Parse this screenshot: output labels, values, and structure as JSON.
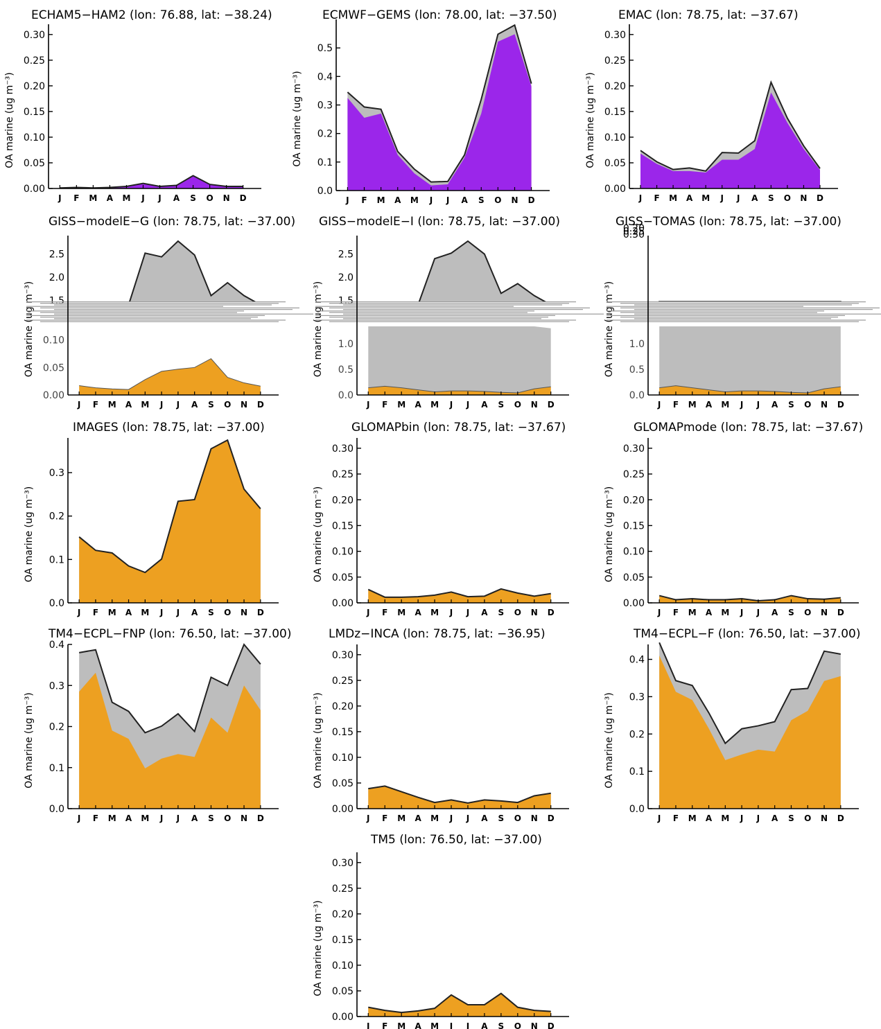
{
  "colors": {
    "grey": "#bdbdbd",
    "purple": "#9b26ea",
    "orange": "#eda021",
    "outline": "#222222"
  },
  "chart_data": [
    {
      "type": "area",
      "title": "ECHAM5−HAM2 (lon: 76.88, lat: −38.24)",
      "ylabel": "OA marine (ug m⁻³)",
      "categories": [
        "J",
        "F",
        "M",
        "A",
        "M",
        "J",
        "J",
        "A",
        "S",
        "O",
        "N",
        "D"
      ],
      "ylim": [
        0,
        0.32
      ],
      "yticks": [
        "0.00",
        "0.05",
        "0.10",
        "0.15",
        "0.20",
        "0.25",
        "0.30"
      ],
      "ytick_values": [
        0,
        0.05,
        0.1,
        0.15,
        0.2,
        0.25,
        0.3
      ],
      "fill_color": "purple",
      "series": [
        {
          "values": [
            0.001,
            0.002,
            0.001,
            0.002,
            0.004,
            0.01,
            0.004,
            0.006,
            0.025,
            0.008,
            0.004,
            0.004
          ]
        },
        {
          "values": [
            0.001,
            0.002,
            0.001,
            0.002,
            0.004,
            0.01,
            0.004,
            0.006,
            0.025,
            0.008,
            0.004,
            0.004
          ]
        }
      ]
    },
    {
      "type": "area",
      "title": "ECMWF−GEMS (lon: 78.00, lat: −37.50)",
      "ylabel": "OA marine (ug m⁻³)",
      "categories": [
        "J",
        "F",
        "M",
        "A",
        "M",
        "J",
        "J",
        "A",
        "S",
        "O",
        "N",
        "D"
      ],
      "ylim": [
        0,
        0.6
      ],
      "yticks": [
        "0.0",
        "0.1",
        "0.2",
        "0.3",
        "0.4",
        "0.5"
      ],
      "ytick_values": [
        0,
        0.1,
        0.2,
        0.3,
        0.4,
        0.5
      ],
      "fill_color": "purple",
      "series": [
        {
          "values": [
            0.345,
            0.293,
            0.285,
            0.137,
            0.075,
            0.03,
            0.032,
            0.125,
            0.32,
            0.548,
            0.58,
            0.375
          ]
        },
        {
          "values": [
            0.325,
            0.255,
            0.27,
            0.125,
            0.06,
            0.018,
            0.022,
            0.115,
            0.27,
            0.522,
            0.548,
            0.365
          ]
        }
      ]
    },
    {
      "type": "area",
      "title": "EMAC (lon: 78.75, lat: −37.67)",
      "ylabel": "OA marine (ug m⁻³)",
      "categories": [
        "J",
        "F",
        "M",
        "A",
        "M",
        "J",
        "J",
        "A",
        "S",
        "O",
        "N",
        "D"
      ],
      "ylim": [
        0,
        0.32
      ],
      "yticks": [
        "0.00",
        "0.05",
        "0.10",
        "0.15",
        "0.20",
        "0.25",
        "0.30"
      ],
      "ytick_values": [
        0,
        0.05,
        0.1,
        0.15,
        0.2,
        0.25,
        0.3
      ],
      "fill_color": "purple",
      "series": [
        {
          "values": [
            0.074,
            0.052,
            0.037,
            0.04,
            0.034,
            0.07,
            0.069,
            0.093,
            0.207,
            0.137,
            0.083,
            0.039
          ]
        },
        {
          "values": [
            0.068,
            0.048,
            0.034,
            0.034,
            0.031,
            0.056,
            0.056,
            0.077,
            0.187,
            0.128,
            0.077,
            0.036
          ]
        }
      ]
    },
    {
      "type": "area",
      "title": "GISS−modelE−G (lon: 78.75, lat: −37.00)",
      "ylabel": "OA marine (ug m⁻³)",
      "categories": [
        "J",
        "F",
        "M",
        "A",
        "M",
        "J",
        "J",
        "A",
        "S",
        "O",
        "N",
        "D"
      ],
      "ylim": [
        0,
        2.9
      ],
      "yticks": [
        "0.00",
        "0.05",
        "0.10",
        "0.15",
        "0.20",
        "0.25",
        "0.30",
        "1.5",
        "2.0",
        "2.5"
      ],
      "ytick_values": [
        0,
        0.05,
        0.1,
        0.15,
        0.2,
        0.25,
        0.3,
        1.5,
        2.0,
        2.5
      ],
      "lower_ylim": [
        0,
        0.126
      ],
      "lower_yticks": [
        "0.00",
        "0.05",
        "0.10"
      ],
      "lower_ytick_values": [
        0,
        0.05,
        0.1
      ],
      "upper_ytick_labels": [
        "1.5",
        "2.0",
        "2.5"
      ],
      "upper_ytick_values": [
        1.5,
        2.0,
        2.5
      ],
      "fill_color": "orange",
      "corrupted": true,
      "series": [
        {
          "values": [
            0.55,
            0.5,
            0.45,
            0.55,
            2.52,
            2.44,
            2.78,
            2.48,
            1.6,
            1.88,
            1.6,
            1.2
          ]
        },
        {
          "values": [
            0.017,
            0.013,
            0.011,
            0.01,
            0.028,
            0.043,
            0.047,
            0.05,
            0.066,
            0.032,
            0.022,
            0.016
          ]
        }
      ]
    },
    {
      "type": "area",
      "title": "GISS−modelE−I (lon: 78.75, lat: −37.00)",
      "ylabel": "OA marine (ug m⁻³)",
      "categories": [
        "J",
        "F",
        "M",
        "A",
        "M",
        "J",
        "J",
        "A",
        "S",
        "O",
        "N",
        "D"
      ],
      "ylim": [
        0,
        2.9
      ],
      "lower_ylim": [
        0,
        1.35
      ],
      "lower_yticks": [
        "0.0",
        "0.5",
        "1.0"
      ],
      "lower_ytick_values": [
        0,
        0.5,
        1.0
      ],
      "upper_ytick_labels": [
        "1.5",
        "2.0",
        "2.5"
      ],
      "upper_ytick_values": [
        1.5,
        2.0,
        2.5
      ],
      "fill_color": "orange",
      "corrupted": true,
      "series": [
        {
          "values": [
            1.35,
            1.35,
            1.35,
            1.35,
            2.4,
            2.52,
            2.78,
            2.5,
            1.65,
            1.86,
            1.6,
            1.3
          ]
        },
        {
          "values": [
            0.14,
            0.17,
            0.14,
            0.1,
            0.06,
            0.08,
            0.08,
            0.07,
            0.05,
            0.04,
            0.12,
            0.16
          ]
        }
      ]
    },
    {
      "type": "area",
      "title": "GISS−TOMAS (lon: 78.75, lat: −37.00)",
      "ylabel": "OA marine (ug m⁻³)",
      "categories": [
        "J",
        "F",
        "M",
        "A",
        "M",
        "J",
        "J",
        "A",
        "S",
        "O",
        "N",
        "D"
      ],
      "ylim": [
        0,
        0.32
      ],
      "lower_ylim": [
        0,
        1.35
      ],
      "lower_yticks": [
        "0.0",
        "0.5",
        "1.0"
      ],
      "lower_ytick_values": [
        0,
        0.5,
        1.0
      ],
      "upper_ytick_labels": [
        "0.20",
        "0.25",
        "0.30"
      ],
      "upper_ytick_values": [
        0.2,
        0.25,
        0.3
      ],
      "fill_color": "orange",
      "corrupted": true,
      "series": [
        {
          "values": [
            1.35,
            1.35,
            1.35,
            1.35,
            1.35,
            1.35,
            1.35,
            1.35,
            1.35,
            1.35,
            1.35,
            1.35
          ]
        },
        {
          "values": [
            0.14,
            0.18,
            0.14,
            0.1,
            0.06,
            0.08,
            0.08,
            0.07,
            0.05,
            0.04,
            0.12,
            0.16
          ]
        }
      ]
    },
    {
      "type": "area",
      "title": "IMAGES (lon: 78.75, lat: −37.00)",
      "ylabel": "OA marine (ug m⁻³)",
      "categories": [
        "J",
        "F",
        "M",
        "A",
        "M",
        "J",
        "J",
        "A",
        "S",
        "O",
        "N",
        "D"
      ],
      "ylim": [
        0,
        0.38
      ],
      "yticks": [
        "0.0",
        "0.1",
        "0.2",
        "0.3"
      ],
      "ytick_values": [
        0,
        0.1,
        0.2,
        0.3
      ],
      "fill_color": "orange",
      "series": [
        {
          "values": [
            0.152,
            0.121,
            0.115,
            0.085,
            0.07,
            0.101,
            0.234,
            0.238,
            0.355,
            0.375,
            0.262,
            0.217
          ]
        },
        {
          "values": [
            0.152,
            0.121,
            0.115,
            0.085,
            0.07,
            0.101,
            0.234,
            0.238,
            0.355,
            0.375,
            0.262,
            0.217
          ]
        }
      ]
    },
    {
      "type": "area",
      "title": "GLOMAPbin (lon: 78.75, lat: −37.67)",
      "ylabel": "OA marine (ug m⁻³)",
      "categories": [
        "J",
        "F",
        "M",
        "A",
        "M",
        "J",
        "J",
        "A",
        "S",
        "O",
        "N",
        "D"
      ],
      "ylim": [
        0,
        0.32
      ],
      "yticks": [
        "0.00",
        "0.05",
        "0.10",
        "0.15",
        "0.20",
        "0.25",
        "0.30"
      ],
      "ytick_values": [
        0,
        0.05,
        0.1,
        0.15,
        0.2,
        0.25,
        0.3
      ],
      "fill_color": "orange",
      "series": [
        {
          "values": [
            0.026,
            0.011,
            0.011,
            0.012,
            0.015,
            0.021,
            0.012,
            0.013,
            0.027,
            0.019,
            0.013,
            0.018
          ]
        },
        {
          "values": [
            0.026,
            0.011,
            0.011,
            0.012,
            0.015,
            0.021,
            0.012,
            0.013,
            0.027,
            0.019,
            0.013,
            0.018
          ]
        }
      ]
    },
    {
      "type": "area",
      "title": "GLOMAPmode (lon: 78.75, lat: −37.67)",
      "ylabel": "OA marine (ug m⁻³)",
      "categories": [
        "J",
        "F",
        "M",
        "A",
        "M",
        "J",
        "J",
        "A",
        "S",
        "O",
        "N",
        "D"
      ],
      "ylim": [
        0,
        0.32
      ],
      "yticks": [
        "0.00",
        "0.05",
        "0.10",
        "0.15",
        "0.20",
        "0.25",
        "0.30"
      ],
      "ytick_values": [
        0,
        0.05,
        0.1,
        0.15,
        0.2,
        0.25,
        0.3
      ],
      "fill_color": "orange",
      "series": [
        {
          "values": [
            0.014,
            0.006,
            0.008,
            0.006,
            0.006,
            0.008,
            0.004,
            0.006,
            0.014,
            0.008,
            0.007,
            0.01
          ]
        },
        {
          "values": [
            0.014,
            0.006,
            0.008,
            0.006,
            0.006,
            0.008,
            0.004,
            0.006,
            0.014,
            0.008,
            0.007,
            0.01
          ]
        }
      ]
    },
    {
      "type": "area",
      "title": "TM4−ECPL−FNP (lon: 76.50, lat: −37.00)",
      "ylabel": "OA marine (ug m⁻³)",
      "categories": [
        "J",
        "F",
        "M",
        "A",
        "M",
        "J",
        "J",
        "A",
        "S",
        "O",
        "N",
        "D"
      ],
      "ylim": [
        0,
        0.4
      ],
      "yticks": [
        "0.0",
        "0.1",
        "0.2",
        "0.3",
        "0.4"
      ],
      "ytick_values": [
        0,
        0.1,
        0.2,
        0.3,
        0.4
      ],
      "fill_color": "orange",
      "series": [
        {
          "values": [
            0.38,
            0.387,
            0.259,
            0.237,
            0.185,
            0.201,
            0.231,
            0.188,
            0.32,
            0.3,
            0.4,
            0.352
          ]
        },
        {
          "values": [
            0.285,
            0.331,
            0.19,
            0.17,
            0.098,
            0.122,
            0.133,
            0.126,
            0.222,
            0.185,
            0.3,
            0.24
          ]
        }
      ]
    },
    {
      "type": "area",
      "title": "LMDz−INCA (lon: 78.75, lat: −36.95)",
      "ylabel": "OA marine (ug m⁻³)",
      "categories": [
        "J",
        "F",
        "M",
        "A",
        "M",
        "J",
        "J",
        "A",
        "S",
        "O",
        "N",
        "D"
      ],
      "ylim": [
        0,
        0.32
      ],
      "yticks": [
        "0.00",
        "0.05",
        "0.10",
        "0.15",
        "0.20",
        "0.25",
        "0.30"
      ],
      "ytick_values": [
        0,
        0.05,
        0.1,
        0.15,
        0.2,
        0.25,
        0.3
      ],
      "fill_color": "orange",
      "series": [
        {
          "values": [
            0.039,
            0.044,
            0.033,
            0.022,
            0.012,
            0.017,
            0.011,
            0.017,
            0.015,
            0.012,
            0.025,
            0.03
          ]
        },
        {
          "values": [
            0.039,
            0.044,
            0.033,
            0.022,
            0.012,
            0.017,
            0.011,
            0.017,
            0.015,
            0.012,
            0.025,
            0.03
          ]
        }
      ]
    },
    {
      "type": "area",
      "title": "TM4−ECPL−F (lon: 76.50, lat: −37.00)",
      "ylabel": "OA marine (ug m⁻³)",
      "categories": [
        "J",
        "F",
        "M",
        "A",
        "M",
        "J",
        "J",
        "A",
        "S",
        "O",
        "N",
        "D"
      ],
      "ylim": [
        0,
        0.44
      ],
      "yticks": [
        "0.0",
        "0.1",
        "0.2",
        "0.3",
        "0.4"
      ],
      "ytick_values": [
        0,
        0.1,
        0.2,
        0.3,
        0.4
      ],
      "fill_color": "orange",
      "series": [
        {
          "values": [
            0.445,
            0.343,
            0.33,
            0.257,
            0.175,
            0.214,
            0.222,
            0.233,
            0.319,
            0.322,
            0.422,
            0.414
          ]
        },
        {
          "values": [
            0.41,
            0.313,
            0.291,
            0.215,
            0.13,
            0.145,
            0.158,
            0.153,
            0.237,
            0.262,
            0.342,
            0.355
          ]
        }
      ]
    },
    {
      "type": "area",
      "title": "TM5 (lon: 76.50, lat: −37.00)",
      "ylabel": "OA marine (ug m⁻³)",
      "categories": [
        "J",
        "F",
        "M",
        "A",
        "M",
        "J",
        "J",
        "A",
        "S",
        "O",
        "N",
        "D"
      ],
      "ylim": [
        0,
        0.32
      ],
      "yticks": [
        "0.00",
        "0.05",
        "0.10",
        "0.15",
        "0.20",
        "0.25",
        "0.30"
      ],
      "ytick_values": [
        0,
        0.05,
        0.1,
        0.15,
        0.2,
        0.25,
        0.3
      ],
      "fill_color": "orange",
      "series": [
        {
          "values": [
            0.018,
            0.012,
            0.008,
            0.011,
            0.016,
            0.042,
            0.023,
            0.023,
            0.045,
            0.018,
            0.012,
            0.01
          ]
        },
        {
          "values": [
            0.018,
            0.012,
            0.008,
            0.011,
            0.016,
            0.042,
            0.023,
            0.023,
            0.045,
            0.018,
            0.012,
            0.01
          ]
        }
      ]
    }
  ]
}
